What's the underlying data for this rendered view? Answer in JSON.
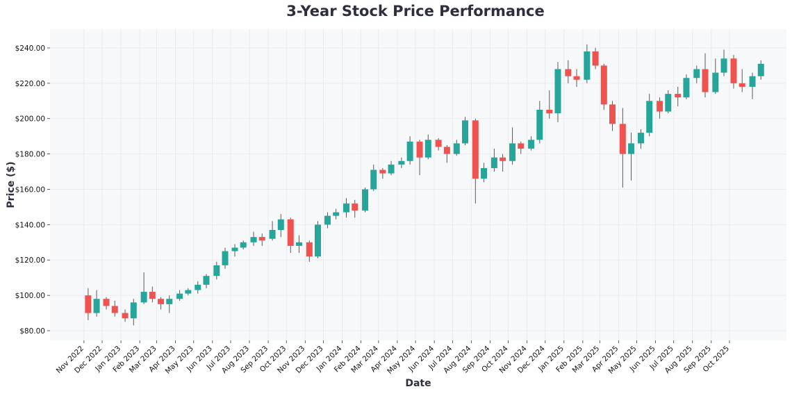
{
  "chart_data": {
    "type": "candlestick",
    "title": "3-Year Stock Price Performance",
    "xlabel": "Date",
    "ylabel": "Price ($)",
    "ylim": [
      74.5,
      250.6
    ],
    "xlim": [
      "2022-09-06",
      "2026-01-03"
    ],
    "grid": true,
    "colors": {
      "up": "#26a69a",
      "down": "#ef5350",
      "wick": "#5a5a5a",
      "background": "#f7f8fa",
      "grid": "#e6e8ec",
      "title": "#2d2f3e"
    },
    "y_ticks": [
      {
        "value": 80,
        "label": "$80.00"
      },
      {
        "value": 100,
        "label": "$100.00"
      },
      {
        "value": 120,
        "label": "$120.00"
      },
      {
        "value": 140,
        "label": "$140.00"
      },
      {
        "value": 160,
        "label": "$160.00"
      },
      {
        "value": 180,
        "label": "$180.00"
      },
      {
        "value": 200,
        "label": "$200.00"
      },
      {
        "value": 220,
        "label": "$220.00"
      },
      {
        "value": 240,
        "label": "$240.00"
      }
    ],
    "x_ticks": [
      {
        "date": "2022-11-01",
        "label": "Nov 2022"
      },
      {
        "date": "2022-12-01",
        "label": "Dec 2022"
      },
      {
        "date": "2023-01-01",
        "label": "Jan 2023"
      },
      {
        "date": "2023-02-01",
        "label": "Feb 2023"
      },
      {
        "date": "2023-03-01",
        "label": "Mar 2023"
      },
      {
        "date": "2023-04-01",
        "label": "Apr 2023"
      },
      {
        "date": "2023-05-01",
        "label": "May 2023"
      },
      {
        "date": "2023-06-01",
        "label": "Jun 2023"
      },
      {
        "date": "2023-07-01",
        "label": "Jul 2023"
      },
      {
        "date": "2023-08-01",
        "label": "Aug 2023"
      },
      {
        "date": "2023-09-01",
        "label": "Sep 2023"
      },
      {
        "date": "2023-10-01",
        "label": "Oct 2023"
      },
      {
        "date": "2023-11-01",
        "label": "Nov 2023"
      },
      {
        "date": "2023-12-01",
        "label": "Dec 2023"
      },
      {
        "date": "2024-01-01",
        "label": "Jan 2024"
      },
      {
        "date": "2024-02-01",
        "label": "Feb 2024"
      },
      {
        "date": "2024-03-01",
        "label": "Mar 2024"
      },
      {
        "date": "2024-04-01",
        "label": "Apr 2024"
      },
      {
        "date": "2024-05-01",
        "label": "May 2024"
      },
      {
        "date": "2024-06-01",
        "label": "Jun 2024"
      },
      {
        "date": "2024-07-01",
        "label": "Jul 2024"
      },
      {
        "date": "2024-08-01",
        "label": "Aug 2024"
      },
      {
        "date": "2024-09-01",
        "label": "Sep 2024"
      },
      {
        "date": "2024-10-01",
        "label": "Oct 2024"
      },
      {
        "date": "2024-11-01",
        "label": "Nov 2024"
      },
      {
        "date": "2024-12-01",
        "label": "Dec 2024"
      },
      {
        "date": "2025-01-01",
        "label": "Jan 2025"
      },
      {
        "date": "2025-02-01",
        "label": "Feb 2025"
      },
      {
        "date": "2025-03-01",
        "label": "Mar 2025"
      },
      {
        "date": "2025-04-01",
        "label": "Apr 2025"
      },
      {
        "date": "2025-05-01",
        "label": "May 2025"
      },
      {
        "date": "2025-06-01",
        "label": "Jun 2025"
      },
      {
        "date": "2025-07-01",
        "label": "Jul 2025"
      },
      {
        "date": "2025-08-01",
        "label": "Aug 2025"
      },
      {
        "date": "2025-09-01",
        "label": "Sep 2025"
      },
      {
        "date": "2025-10-01",
        "label": "Oct 2025"
      }
    ],
    "ohlc_columns": [
      "date",
      "open",
      "high",
      "low",
      "close"
    ],
    "ohlc": [
      [
        "2022-11-01",
        100,
        104,
        86,
        90
      ],
      [
        "2022-11-15",
        90,
        103,
        88,
        98
      ],
      [
        "2022-12-01",
        98,
        99,
        92,
        94
      ],
      [
        "2022-12-15",
        94,
        97,
        88,
        90
      ],
      [
        "2023-01-01",
        90,
        92,
        85,
        87
      ],
      [
        "2023-01-15",
        87,
        98,
        83,
        96
      ],
      [
        "2023-02-01",
        96,
        113,
        95,
        102
      ],
      [
        "2023-02-15",
        102,
        105,
        96,
        98
      ],
      [
        "2023-03-01",
        98,
        99,
        92,
        95
      ],
      [
        "2023-03-15",
        95,
        100,
        90,
        98
      ],
      [
        "2023-04-01",
        98,
        103,
        97,
        101
      ],
      [
        "2023-04-15",
        101,
        104,
        100,
        103
      ],
      [
        "2023-05-01",
        103,
        108,
        101,
        106
      ],
      [
        "2023-05-15",
        106,
        112,
        104,
        111
      ],
      [
        "2023-06-01",
        111,
        119,
        109,
        117
      ],
      [
        "2023-06-15",
        117,
        127,
        115,
        125
      ],
      [
        "2023-07-01",
        125,
        129,
        122,
        127
      ],
      [
        "2023-07-15",
        127,
        131,
        126,
        130
      ],
      [
        "2023-08-01",
        130,
        136,
        128,
        133
      ],
      [
        "2023-08-15",
        133,
        135,
        128,
        131
      ],
      [
        "2023-09-01",
        132,
        142,
        131,
        137
      ],
      [
        "2023-09-15",
        137,
        146,
        133,
        143
      ],
      [
        "2023-10-01",
        143,
        144,
        124,
        128
      ],
      [
        "2023-10-15",
        128,
        134,
        124,
        130
      ],
      [
        "2023-11-01",
        130,
        131,
        119,
        122
      ],
      [
        "2023-11-15",
        122,
        142,
        121,
        140
      ],
      [
        "2023-12-01",
        140,
        147,
        138,
        145
      ],
      [
        "2023-12-15",
        145,
        149,
        143,
        147
      ],
      [
        "2024-01-01",
        147,
        155,
        144,
        152
      ],
      [
        "2024-01-15",
        152,
        154,
        144,
        148
      ],
      [
        "2024-02-01",
        148,
        161,
        147,
        160
      ],
      [
        "2024-02-15",
        160,
        174,
        159,
        171
      ],
      [
        "2024-03-01",
        171,
        172,
        166,
        169
      ],
      [
        "2024-03-15",
        169,
        176,
        168,
        174
      ],
      [
        "2024-04-01",
        174,
        178,
        172,
        176
      ],
      [
        "2024-04-15",
        176,
        190,
        174,
        187
      ],
      [
        "2024-05-01",
        187,
        188,
        168,
        178
      ],
      [
        "2024-05-15",
        178,
        191,
        177,
        188
      ],
      [
        "2024-06-01",
        188,
        189,
        182,
        184
      ],
      [
        "2024-06-15",
        184,
        185,
        175,
        180
      ],
      [
        "2024-07-01",
        180,
        188,
        179,
        186
      ],
      [
        "2024-07-15",
        186,
        201,
        185,
        199
      ],
      [
        "2024-08-01",
        199,
        200,
        152,
        166
      ],
      [
        "2024-08-15",
        166,
        175,
        164,
        172
      ],
      [
        "2024-09-01",
        172,
        183,
        170,
        178
      ],
      [
        "2024-09-15",
        178,
        180,
        170,
        176
      ],
      [
        "2024-10-01",
        176,
        195,
        174,
        186
      ],
      [
        "2024-10-15",
        186,
        187,
        180,
        183
      ],
      [
        "2024-11-01",
        183,
        190,
        182,
        188
      ],
      [
        "2024-11-15",
        188,
        210,
        186,
        205
      ],
      [
        "2024-12-01",
        205,
        216,
        200,
        203
      ],
      [
        "2024-12-15",
        203,
        232,
        198,
        228
      ],
      [
        "2025-01-01",
        228,
        233,
        220,
        224
      ],
      [
        "2025-01-15",
        224,
        228,
        218,
        222
      ],
      [
        "2025-02-01",
        222,
        242,
        220,
        238
      ],
      [
        "2025-02-15",
        238,
        240,
        228,
        230
      ],
      [
        "2025-03-01",
        230,
        231,
        205,
        208
      ],
      [
        "2025-03-15",
        208,
        210,
        193,
        197
      ],
      [
        "2025-04-01",
        197,
        206,
        161,
        180
      ],
      [
        "2025-04-15",
        180,
        192,
        165,
        186
      ],
      [
        "2025-05-01",
        186,
        194,
        183,
        192
      ],
      [
        "2025-05-15",
        192,
        214,
        190,
        210
      ],
      [
        "2025-06-01",
        210,
        212,
        200,
        204
      ],
      [
        "2025-06-15",
        204,
        216,
        203,
        214
      ],
      [
        "2025-07-01",
        214,
        218,
        207,
        212
      ],
      [
        "2025-07-15",
        212,
        225,
        211,
        223
      ],
      [
        "2025-08-01",
        223,
        230,
        220,
        228
      ],
      [
        "2025-08-15",
        228,
        237,
        212,
        215
      ],
      [
        "2025-09-01",
        215,
        234,
        214,
        226
      ],
      [
        "2025-09-15",
        226,
        239,
        224,
        234
      ],
      [
        "2025-10-01",
        234,
        236,
        217,
        220
      ],
      [
        "2025-10-15",
        220,
        228,
        215,
        218
      ],
      [
        "2025-11-01",
        218,
        226,
        211,
        224
      ],
      [
        "2025-11-15",
        224,
        233,
        222,
        231
      ]
    ]
  }
}
